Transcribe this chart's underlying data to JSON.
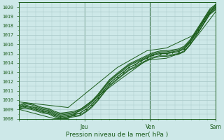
{
  "bg_color": "#cde8e8",
  "grid_color": "#a8c8c8",
  "line_color": "#1a5c1a",
  "ymin": 1008,
  "ymax": 1020.5,
  "xlabel": "Pression niveau de la mer( hPa )",
  "figwidth": 3.2,
  "figheight": 2.0,
  "dpi": 100,
  "lines": [
    {
      "x": [
        0.0,
        0.03,
        0.06,
        0.09,
        0.12,
        0.15,
        0.18,
        0.21,
        0.25,
        0.28,
        0.31,
        0.34,
        0.37,
        0.4,
        0.43,
        0.46,
        0.5,
        0.53,
        0.56,
        0.59,
        0.62,
        0.65,
        0.68,
        0.72,
        0.75,
        0.78,
        0.81,
        0.84,
        0.87,
        0.91,
        0.94,
        0.97,
        1.0
      ],
      "y": [
        1009.2,
        1009.4,
        1009.3,
        1009.1,
        1008.9,
        1008.8,
        1008.5,
        1008.3,
        1008.4,
        1008.5,
        1008.6,
        1009.0,
        1009.5,
        1010.2,
        1011.0,
        1011.8,
        1012.5,
        1013.0,
        1013.5,
        1013.8,
        1014.2,
        1014.5,
        1014.8,
        1015.0,
        1015.0,
        1015.1,
        1015.2,
        1015.5,
        1016.2,
        1017.5,
        1018.5,
        1019.5,
        1020.0
      ],
      "markers": false
    },
    {
      "x": [
        0.0,
        0.03,
        0.06,
        0.09,
        0.12,
        0.15,
        0.18,
        0.21,
        0.25,
        0.28,
        0.31,
        0.34,
        0.37,
        0.4,
        0.43,
        0.46,
        0.5,
        0.53,
        0.56,
        0.59,
        0.62,
        0.65,
        0.68,
        0.72,
        0.75,
        0.78,
        0.81,
        0.84,
        0.87,
        0.91,
        0.94,
        0.97,
        1.0
      ],
      "y": [
        1009.3,
        1009.5,
        1009.3,
        1009.2,
        1009.0,
        1008.9,
        1008.6,
        1008.4,
        1008.5,
        1008.6,
        1008.8,
        1009.2,
        1009.7,
        1010.4,
        1011.2,
        1012.0,
        1012.7,
        1013.2,
        1013.7,
        1014.0,
        1014.3,
        1014.6,
        1014.9,
        1015.1,
        1015.1,
        1015.2,
        1015.3,
        1015.6,
        1016.3,
        1017.6,
        1018.6,
        1019.6,
        1020.1
      ],
      "markers": false
    },
    {
      "x": [
        0.0,
        0.03,
        0.06,
        0.09,
        0.12,
        0.15,
        0.18,
        0.21,
        0.25,
        0.28,
        0.31,
        0.34,
        0.37,
        0.4,
        0.43,
        0.46,
        0.5,
        0.53,
        0.56,
        0.59,
        0.62,
        0.65,
        0.68,
        0.72,
        0.75,
        0.78,
        0.81,
        0.84,
        0.87,
        0.91,
        0.94,
        0.97,
        1.0
      ],
      "y": [
        1009.1,
        1009.2,
        1009.1,
        1008.9,
        1008.7,
        1008.6,
        1008.3,
        1008.1,
        1008.2,
        1008.3,
        1008.4,
        1008.8,
        1009.3,
        1010.0,
        1010.8,
        1011.6,
        1012.3,
        1012.8,
        1013.3,
        1013.6,
        1014.0,
        1014.3,
        1014.6,
        1014.8,
        1014.8,
        1014.9,
        1015.0,
        1015.3,
        1016.0,
        1017.3,
        1018.3,
        1019.3,
        1019.8
      ],
      "markers": false
    },
    {
      "x": [
        0.0,
        0.03,
        0.06,
        0.09,
        0.12,
        0.15,
        0.18,
        0.21,
        0.25,
        0.28,
        0.31,
        0.34,
        0.37,
        0.4,
        0.43,
        0.46,
        0.5,
        0.53,
        0.56,
        0.59,
        0.62,
        0.65,
        0.68,
        0.72,
        0.75,
        0.78,
        0.81,
        0.84,
        0.87,
        0.91,
        0.94,
        0.97,
        1.0
      ],
      "y": [
        1009.4,
        1009.6,
        1009.5,
        1009.3,
        1009.1,
        1009.0,
        1008.7,
        1008.5,
        1008.6,
        1008.7,
        1008.9,
        1009.3,
        1009.8,
        1010.5,
        1011.3,
        1012.1,
        1012.8,
        1013.3,
        1013.8,
        1014.1,
        1014.4,
        1014.7,
        1015.0,
        1015.2,
        1015.2,
        1015.3,
        1015.4,
        1015.7,
        1016.4,
        1017.7,
        1018.7,
        1019.7,
        1020.2
      ],
      "markers": false
    },
    {
      "x": [
        0.0,
        0.03,
        0.06,
        0.09,
        0.12,
        0.15,
        0.18,
        0.21,
        0.25,
        0.28,
        0.31,
        0.34,
        0.37,
        0.4,
        0.43,
        0.46,
        0.5,
        0.53,
        0.56,
        0.59,
        0.62,
        0.65,
        0.68,
        0.72,
        0.75,
        0.78,
        0.81,
        0.84,
        0.87,
        0.91,
        0.94,
        0.97,
        1.0
      ],
      "y": [
        1009.5,
        1009.7,
        1009.6,
        1009.4,
        1009.2,
        1009.1,
        1008.8,
        1008.6,
        1008.7,
        1008.8,
        1009.0,
        1009.4,
        1009.9,
        1010.6,
        1011.4,
        1012.2,
        1012.9,
        1013.4,
        1013.9,
        1014.2,
        1014.5,
        1014.8,
        1015.1,
        1015.3,
        1015.3,
        1015.4,
        1015.5,
        1015.8,
        1016.5,
        1017.8,
        1018.8,
        1019.8,
        1020.3
      ],
      "markers": false
    },
    {
      "x": [
        0.0,
        0.03,
        0.06,
        0.09,
        0.12,
        0.15,
        0.18,
        0.21,
        0.25,
        0.28,
        0.31,
        0.34,
        0.37,
        0.4,
        0.43,
        0.46,
        0.5,
        0.53,
        0.56,
        0.59,
        0.62,
        0.65,
        0.68,
        0.72,
        0.75,
        0.78,
        0.81,
        0.84,
        0.87,
        0.91,
        0.94,
        0.97,
        1.0
      ],
      "y": [
        1009.0,
        1009.1,
        1009.0,
        1008.8,
        1008.6,
        1008.5,
        1008.2,
        1008.0,
        1008.1,
        1008.2,
        1008.3,
        1008.7,
        1009.2,
        1009.9,
        1010.7,
        1011.5,
        1012.2,
        1012.7,
        1013.2,
        1013.5,
        1013.9,
        1014.2,
        1014.5,
        1014.7,
        1014.7,
        1014.8,
        1014.9,
        1015.2,
        1015.9,
        1017.2,
        1018.2,
        1019.2,
        1019.7
      ],
      "markers": false
    },
    {
      "x": [
        0.0,
        0.03,
        0.06,
        0.09,
        0.12,
        0.15,
        0.18,
        0.21,
        0.25,
        0.28,
        0.31,
        0.34,
        0.37,
        0.4,
        0.43,
        0.46,
        0.5,
        0.53,
        0.56,
        0.59,
        0.62,
        0.65,
        0.68,
        0.72,
        0.75,
        0.78,
        0.81,
        0.84,
        0.87,
        0.91,
        0.94,
        0.97,
        1.0
      ],
      "y": [
        1009.2,
        1009.3,
        1009.2,
        1009.0,
        1008.8,
        1008.7,
        1008.4,
        1008.2,
        1008.3,
        1008.4,
        1008.6,
        1009.0,
        1009.5,
        1010.2,
        1011.0,
        1011.8,
        1012.5,
        1013.0,
        1013.5,
        1013.8,
        1014.2,
        1014.5,
        1014.8,
        1015.0,
        1015.0,
        1015.1,
        1015.2,
        1015.5,
        1016.2,
        1017.5,
        1018.5,
        1019.4,
        1019.9
      ],
      "markers": true
    }
  ],
  "envelope_top_x": [
    0.0,
    0.25,
    0.5,
    0.65,
    0.75,
    0.84,
    0.91,
    1.0
  ],
  "envelope_top_y": [
    1009.8,
    1009.2,
    1013.5,
    1015.3,
    1015.6,
    1016.5,
    1017.2,
    1020.3
  ],
  "envelope_bot_x": [
    0.0,
    0.18,
    0.25,
    0.5,
    0.65,
    0.75,
    0.84,
    0.91,
    1.0
  ],
  "envelope_bot_y": [
    1009.0,
    1008.0,
    1008.0,
    1012.0,
    1014.3,
    1014.5,
    1015.2,
    1017.0,
    1019.5
  ],
  "ylabel_ticks": [
    1008,
    1009,
    1010,
    1011,
    1012,
    1013,
    1014,
    1015,
    1016,
    1017,
    1018,
    1019,
    1020
  ],
  "xtick_pos": [
    0.0,
    0.333,
    0.667,
    1.0
  ],
  "xtick_labels": [
    "",
    "Jeu",
    "Ven",
    "Sam"
  ]
}
